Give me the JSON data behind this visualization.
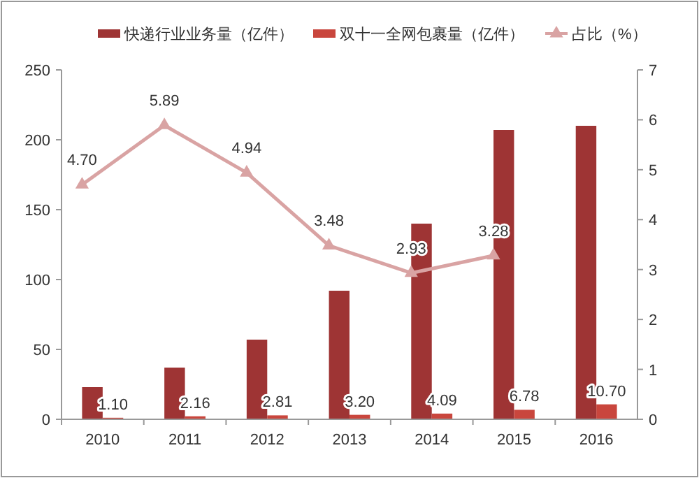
{
  "chart_data": {
    "type": "bar",
    "categories": [
      "2010",
      "2011",
      "2012",
      "2013",
      "2014",
      "2015",
      "2016"
    ],
    "series": [
      {
        "name": "快递行业业务量（亿件）",
        "color": "#9e3434",
        "values": [
          23,
          37,
          57,
          92,
          140,
          207,
          210
        ]
      },
      {
        "name": "双十一全网包裹量（亿件）",
        "color": "#c9463d",
        "values": [
          1.1,
          2.16,
          2.81,
          3.2,
          4.09,
          6.78,
          10.7
        ],
        "value_labels": [
          "1.10",
          "2.16",
          "2.81",
          "3.20",
          "4.09",
          "6.78",
          "10.70"
        ]
      },
      {
        "name": "占比（%）",
        "type": "line",
        "axis": "y2",
        "color": "#d9a3a3",
        "values": [
          4.7,
          5.89,
          4.94,
          3.48,
          2.93,
          3.28,
          null
        ],
        "value_labels": [
          "4.70",
          "5.89",
          "4.94",
          "3.48",
          "2.93",
          "3.28",
          null
        ]
      }
    ],
    "ylim": [
      0,
      250
    ],
    "yticks": [
      0,
      50,
      100,
      150,
      200,
      250
    ],
    "y2lim": [
      0,
      7
    ],
    "y2ticks": [
      0,
      1,
      2,
      3,
      4,
      5,
      6,
      7
    ],
    "legend": "top",
    "marker": "triangle",
    "grid": false
  }
}
